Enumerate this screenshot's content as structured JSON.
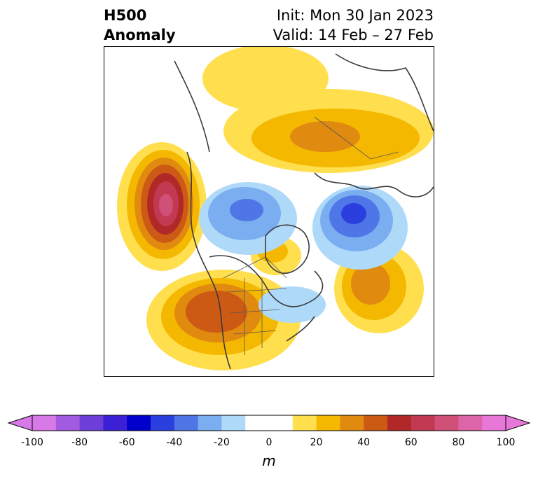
{
  "title": {
    "left_line1": "H500",
    "left_line2": "Anomaly",
    "right_line1": "Init: Mon 30 Jan 2023",
    "right_line2": "Valid: 14 Feb – 27 Feb"
  },
  "colorbar": {
    "unit": "m",
    "min": -100,
    "max": 100,
    "tick_labels": [
      "-100",
      "-80",
      "-60",
      "-40",
      "-20",
      "0",
      "20",
      "40",
      "60",
      "80",
      "100"
    ],
    "bins": [
      {
        "from": -100,
        "to": -90,
        "color": "#d77ae8"
      },
      {
        "from": -90,
        "to": -80,
        "color": "#a25be0"
      },
      {
        "from": -80,
        "to": -70,
        "color": "#6d3fd8"
      },
      {
        "from": -70,
        "to": -60,
        "color": "#3c20d6"
      },
      {
        "from": -60,
        "to": -50,
        "color": "#0000cc"
      },
      {
        "from": -50,
        "to": -40,
        "color": "#2b3fdf"
      },
      {
        "from": -40,
        "to": -30,
        "color": "#4e76e6"
      },
      {
        "from": -30,
        "to": -20,
        "color": "#7aaef0"
      },
      {
        "from": -20,
        "to": -10,
        "color": "#afd9f8"
      },
      {
        "from": -10,
        "to": 10,
        "color": "#ffffff"
      },
      {
        "from": 10,
        "to": 20,
        "color": "#ffdf4d"
      },
      {
        "from": 20,
        "to": 30,
        "color": "#f4b800"
      },
      {
        "from": 30,
        "to": 40,
        "color": "#e08b10"
      },
      {
        "from": 40,
        "to": 50,
        "color": "#cc5a14"
      },
      {
        "from": 50,
        "to": 60,
        "color": "#b02828"
      },
      {
        "from": 60,
        "to": 70,
        "color": "#c23a52"
      },
      {
        "from": 70,
        "to": 80,
        "color": "#d15078"
      },
      {
        "from": 80,
        "to": 90,
        "color": "#dc64a8"
      },
      {
        "from": 90,
        "to": 100,
        "color": "#e878d8"
      }
    ]
  },
  "map": {
    "projection": "north-polar-stereographic",
    "field": "500 hPa geopotential height anomaly",
    "coastline_color": "#3a3a3a"
  }
}
